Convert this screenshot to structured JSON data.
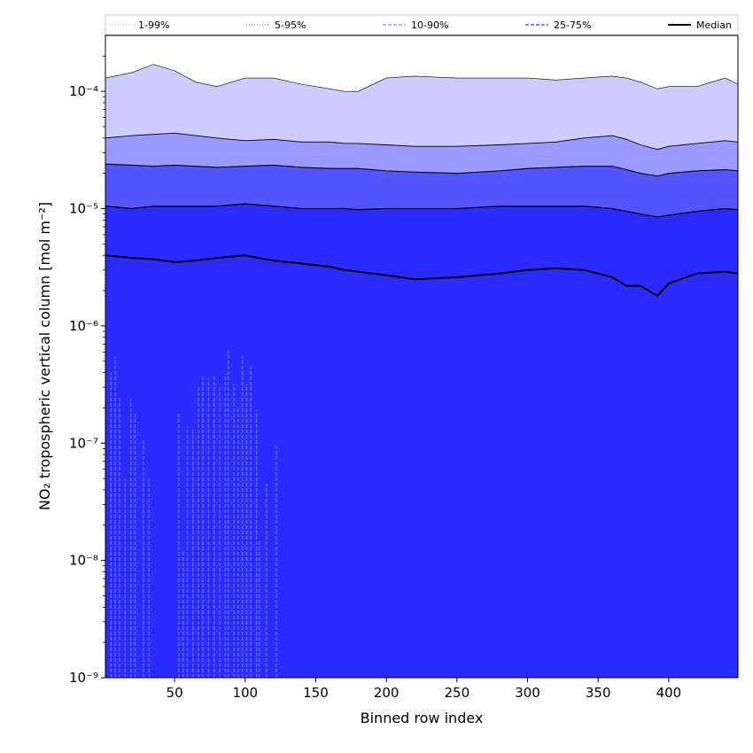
{
  "chart_data": {
    "type": "area",
    "xlabel": "Binned row index",
    "ylabel": "NO₂ tropospheric vertical column [mol m⁻²]",
    "xlim": [
      1,
      449
    ],
    "ylim": [
      1e-09,
      0.0003
    ],
    "yscale": "log",
    "x_ticks": [
      50,
      100,
      150,
      200,
      250,
      300,
      350,
      400
    ],
    "y_ticks": [
      {
        "value": 1e-09,
        "label": "10⁻⁹"
      },
      {
        "value": 1e-08,
        "label": "10⁻⁸"
      },
      {
        "value": 1e-07,
        "label": "10⁻⁷"
      },
      {
        "value": 1e-06,
        "label": "10⁻⁶"
      },
      {
        "value": 1e-05,
        "label": "10⁻⁵"
      },
      {
        "value": 0.0001,
        "label": "10⁻⁴"
      }
    ],
    "legend": {
      "placement": "top",
      "entries": [
        {
          "label": "1-99%",
          "style": "dotted",
          "color": "#ccccff"
        },
        {
          "label": "5-95%",
          "style": "dotted",
          "color": "#9999ff"
        },
        {
          "label": "10-90%",
          "style": "dashed",
          "color": "#9999ff"
        },
        {
          "label": "25-75%",
          "style": "dashed",
          "color": "#5555ff"
        },
        {
          "label": "Median",
          "style": "solid",
          "color": "#000000"
        }
      ]
    },
    "fill_colors": {
      "band_1_99": "#ccccff",
      "band_5_95": "#9999ff",
      "band_10_90": "#5555ff",
      "band_25_75": "#2b2bff"
    },
    "x": [
      1,
      20,
      35,
      50,
      65,
      80,
      100,
      120,
      140,
      160,
      170,
      180,
      200,
      220,
      250,
      280,
      300,
      320,
      340,
      360,
      370,
      380,
      392,
      400,
      420,
      440,
      449
    ],
    "series": [
      {
        "name": "99th percentile",
        "values": [
          0.00013,
          0.000145,
          0.00017,
          0.00015,
          0.00012,
          0.00011,
          0.00013,
          0.00013,
          0.000115,
          0.000105,
          0.0001,
          0.0001,
          0.00013,
          0.000135,
          0.00013,
          0.00013,
          0.00013,
          0.000125,
          0.00013,
          0.000135,
          0.00013,
          0.00012,
          0.000105,
          0.00011,
          0.00011,
          0.00013,
          0.000115
        ]
      },
      {
        "name": "95th percentile",
        "values": [
          4e-05,
          4.2e-05,
          4.3e-05,
          4.4e-05,
          4.2e-05,
          4e-05,
          3.8e-05,
          3.9e-05,
          3.7e-05,
          3.7e-05,
          3.6e-05,
          3.6e-05,
          3.5e-05,
          3.4e-05,
          3.4e-05,
          3.5e-05,
          3.6e-05,
          3.7e-05,
          4e-05,
          4.2e-05,
          3.9e-05,
          3.5e-05,
          3.2e-05,
          3.4e-05,
          3.6e-05,
          3.8e-05,
          3.7e-05
        ]
      },
      {
        "name": "90th percentile",
        "values": [
          2.4e-05,
          2.35e-05,
          2.3e-05,
          2.35e-05,
          2.3e-05,
          2.25e-05,
          2.3e-05,
          2.35e-05,
          2.25e-05,
          2.2e-05,
          2.2e-05,
          2.2e-05,
          2.1e-05,
          2.05e-05,
          2e-05,
          2.1e-05,
          2.2e-05,
          2.25e-05,
          2.3e-05,
          2.3e-05,
          2.15e-05,
          2e-05,
          1.9e-05,
          2e-05,
          2.1e-05,
          2.15e-05,
          2.1e-05
        ]
      },
      {
        "name": "75th percentile",
        "values": [
          1.05e-05,
          1e-05,
          1.05e-05,
          1.05e-05,
          1.05e-05,
          1.05e-05,
          1.1e-05,
          1.05e-05,
          1e-05,
          1e-05,
          1e-05,
          9.8e-06,
          1e-05,
          1e-05,
          1e-05,
          1.05e-05,
          1.05e-05,
          1.05e-05,
          1.05e-05,
          1e-05,
          9.5e-06,
          9e-06,
          8.5e-06,
          8.8e-06,
          9.5e-06,
          1e-05,
          9.8e-06
        ]
      },
      {
        "name": "Median",
        "values": [
          4e-06,
          3.8e-06,
          3.7e-06,
          3.5e-06,
          3.6e-06,
          3.8e-06,
          4e-06,
          3.6e-06,
          3.4e-06,
          3.2e-06,
          3e-06,
          2.9e-06,
          2.7e-06,
          2.5e-06,
          2.6e-06,
          2.8e-06,
          3e-06,
          3.1e-06,
          3e-06,
          2.6e-06,
          2.2e-06,
          2.2e-06,
          1.8e-06,
          2.3e-06,
          2.8e-06,
          2.9e-06,
          2.8e-06
        ]
      }
    ],
    "lower_band_spikes": [
      {
        "x": 5,
        "y": 4e-07
      },
      {
        "x": 8,
        "y": 5.5e-07
      },
      {
        "x": 11,
        "y": 2.5e-07
      },
      {
        "x": 15,
        "y": 5e-08
      },
      {
        "x": 19,
        "y": 2.4e-07
      },
      {
        "x": 22,
        "y": 1.8e-07
      },
      {
        "x": 28,
        "y": 1.05e-07
      },
      {
        "x": 32,
        "y": 5e-08
      },
      {
        "x": 53,
        "y": 1.8e-07
      },
      {
        "x": 56,
        "y": 1.2e-08
      },
      {
        "x": 59,
        "y": 1.4e-07
      },
      {
        "x": 63,
        "y": 1.3e-07
      },
      {
        "x": 67,
        "y": 3e-07
      },
      {
        "x": 70,
        "y": 3.8e-07
      },
      {
        "x": 74,
        "y": 3.6e-07
      },
      {
        "x": 78,
        "y": 3.8e-07
      },
      {
        "x": 82,
        "y": 3e-07
      },
      {
        "x": 86,
        "y": 3.9e-07
      },
      {
        "x": 88,
        "y": 6.2e-07
      },
      {
        "x": 92,
        "y": 3.2e-07
      },
      {
        "x": 95,
        "y": 2e-07
      },
      {
        "x": 98,
        "y": 5.5e-07
      },
      {
        "x": 101,
        "y": 3.2e-07
      },
      {
        "x": 104,
        "y": 4.5e-07
      },
      {
        "x": 108,
        "y": 1.9e-07
      },
      {
        "x": 110,
        "y": 1.5e-08
      },
      {
        "x": 115,
        "y": 4.5e-08
      },
      {
        "x": 122,
        "y": 9.5e-08
      }
    ]
  }
}
